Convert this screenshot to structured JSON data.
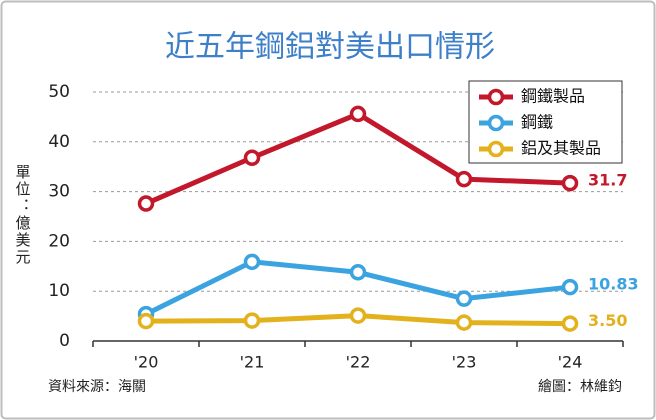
{
  "chart_data": {
    "type": "line",
    "title": "近五年鋼鋁對美出口情形",
    "y_label": "單位：億美元",
    "categories": [
      "'20",
      "'21",
      "'22",
      "'23",
      "'24"
    ],
    "series": [
      {
        "name": "鋼鐵製品",
        "color": "#c3182b",
        "values": [
          27.6,
          36.8,
          45.6,
          32.5,
          31.7
        ],
        "value_labels": [
          null,
          null,
          null,
          null,
          "31.7"
        ]
      },
      {
        "name": "鋼鐵",
        "color": "#3ba3e0",
        "values": [
          5.4,
          15.9,
          13.8,
          8.5,
          10.83
        ],
        "value_labels": [
          null,
          null,
          null,
          null,
          "10.83"
        ]
      },
      {
        "name": "鋁及其製品",
        "color": "#e3b11c",
        "values": [
          4.0,
          4.1,
          5.1,
          3.7,
          3.5
        ],
        "value_labels": [
          null,
          null,
          null,
          null,
          "3.50"
        ]
      }
    ],
    "ylim": [
      0,
      50
    ],
    "yticks": [
      0,
      10,
      20,
      30,
      40,
      50
    ],
    "grid": true,
    "legend": "top-right",
    "source": "資料來源：海關",
    "credit": "繪圖：林維鈞"
  }
}
